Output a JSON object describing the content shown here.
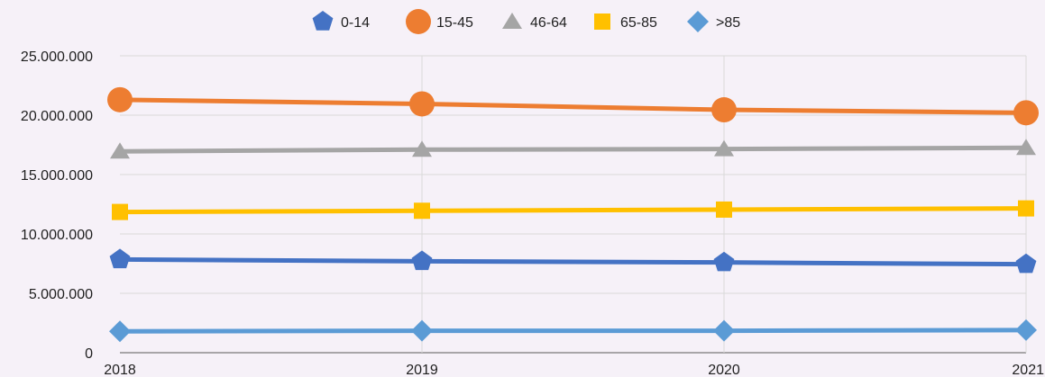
{
  "chart_data": {
    "type": "line",
    "x": [
      "2018",
      "2019",
      "2020",
      "2021"
    ],
    "ylim": [
      0,
      25000000
    ],
    "yticks": [
      0,
      5000000,
      10000000,
      15000000,
      20000000,
      25000000
    ],
    "ytick_labels": [
      "0",
      "5.000.000",
      "10.000.000",
      "15.000.000",
      "20.000.000",
      "25.000.000"
    ],
    "grid": true,
    "legend_position": "top",
    "series": [
      {
        "name": "0-14",
        "color": "#4472c4",
        "marker": "pentagon",
        "values": [
          7850000,
          7700000,
          7600000,
          7450000
        ]
      },
      {
        "name": "15-45",
        "color": "#ed7d31",
        "marker": "circle",
        "values": [
          21300000,
          20950000,
          20450000,
          20200000
        ]
      },
      {
        "name": "46-64",
        "color": "#a5a5a5",
        "marker": "triangle",
        "values": [
          16950000,
          17100000,
          17150000,
          17250000
        ]
      },
      {
        "name": "65-85",
        "color": "#ffc000",
        "marker": "square",
        "values": [
          11850000,
          11950000,
          12050000,
          12150000
        ]
      },
      {
        "name": ">85",
        "color": "#5b9bd5",
        "marker": "diamond",
        "values": [
          1800000,
          1850000,
          1850000,
          1900000
        ]
      }
    ]
  }
}
